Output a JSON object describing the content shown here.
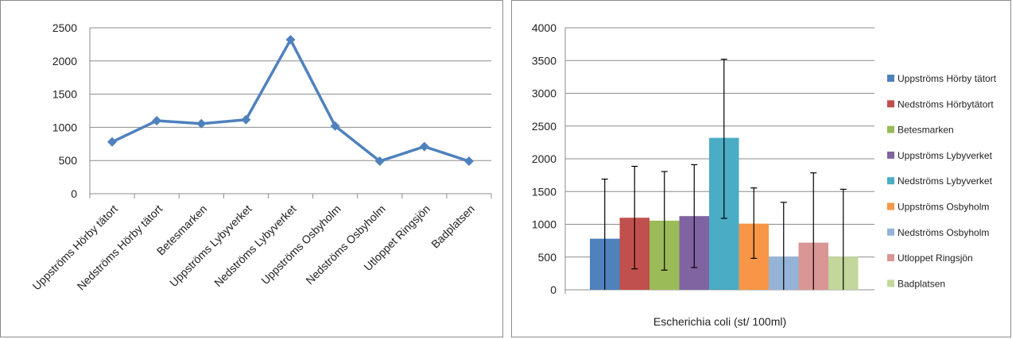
{
  "chart_data": [
    {
      "type": "line",
      "categories": [
        "Uppströms Hörby tätort",
        "Nedströms Hörby tätort",
        "Betesmarken",
        "Uppströms Lybyverket",
        "Nedströms Lybyverket",
        "Uppströms Osbyholm",
        "Nedströms Osbyholm",
        "Utloppet Ringsjön",
        "Badplatsen"
      ],
      "values": [
        780,
        1100,
        1055,
        1115,
        2320,
        1020,
        490,
        710,
        490
      ],
      "ylim": [
        0,
        2500
      ],
      "yticks": [
        0,
        500,
        1000,
        1500,
        2000,
        2500
      ],
      "grid": true,
      "color": "#4f81bd"
    },
    {
      "type": "bar",
      "xlabel": "Escherichia coli (st/ 100ml)",
      "ylim": [
        0,
        4000
      ],
      "yticks": [
        0,
        500,
        1000,
        1500,
        2000,
        2500,
        3000,
        3500,
        4000
      ],
      "grid": true,
      "legend": "right",
      "series": [
        {
          "name": "Uppströms Hörby tätort",
          "value": 780,
          "err_low": 0,
          "err_high": 1690,
          "color": "#4f81bd"
        },
        {
          "name": "Nedströms Hörbytätort",
          "value": 1100,
          "err_low": 320,
          "err_high": 1885,
          "color": "#c0504d"
        },
        {
          "name": "Betesmarken",
          "value": 1055,
          "err_low": 300,
          "err_high": 1805,
          "color": "#9bbb59"
        },
        {
          "name": "Uppströms Lybyverket",
          "value": 1125,
          "err_low": 340,
          "err_high": 1910,
          "color": "#8064a2"
        },
        {
          "name": "Nedströms Lybyverket",
          "value": 2320,
          "err_low": 1090,
          "err_high": 3520,
          "color": "#4bacc6"
        },
        {
          "name": "Uppströms Osbyholm",
          "value": 1010,
          "err_low": 480,
          "err_high": 1555,
          "color": "#f79646"
        },
        {
          "name": "Nedströms Osbyholm",
          "value": 505,
          "err_low": 0,
          "err_high": 1335,
          "color": "#95b3d7"
        },
        {
          "name": "Utloppet Ringsjön",
          "value": 720,
          "err_low": 0,
          "err_high": 1785,
          "color": "#d99694"
        },
        {
          "name": "Badplatsen",
          "value": 505,
          "err_low": 0,
          "err_high": 1535,
          "color": "#c3d69b"
        }
      ]
    }
  ]
}
